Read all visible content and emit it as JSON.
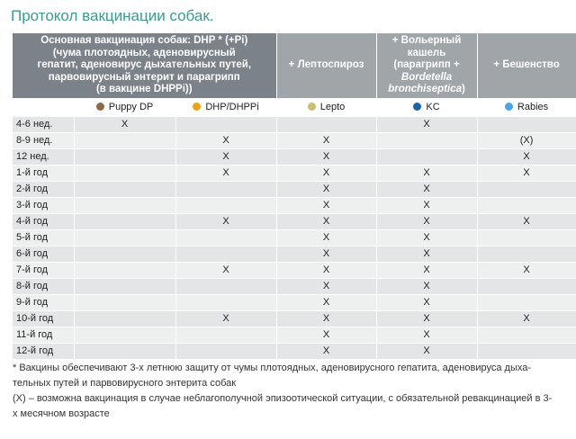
{
  "title": "Протокол вакцинации собак.",
  "header": {
    "main_lines": [
      "Основная вакцинация собак: DHP * (+Pi)",
      "(чума плотоядных, аденовирусный",
      "гепатит, аденовирус дыхательных путей,",
      "парвовирусный энтерит и парагрипп",
      "(в вакцине DHPPi))"
    ],
    "lepto": "+ Лептоспироз",
    "kc_lines": [
      "+ Вольерный",
      "кашель",
      "(парагрипп +"
    ],
    "kc_italic": [
      "Bordetella",
      "bronchiseptica"
    ],
    "kc_close": ")",
    "rabies": "+ Бешенство"
  },
  "legend": [
    {
      "label": "Puppy DP",
      "color": "#8b6a45"
    },
    {
      "label": "DHP/DHPPi",
      "color": "#e8a21c"
    },
    {
      "label": "Lepto",
      "color": "#c9bd72"
    },
    {
      "label": "KC",
      "color": "#1a63a8"
    },
    {
      "label": "Rabies",
      "color": "#4aa8dc"
    }
  ],
  "rows": [
    {
      "age": "4-6 нед.",
      "cells": [
        "X",
        "",
        "",
        "X",
        ""
      ]
    },
    {
      "age": "8-9 нед.",
      "cells": [
        "",
        "X",
        "X",
        "",
        "(X)"
      ]
    },
    {
      "age": "12 нед.",
      "cells": [
        "",
        "X",
        "X",
        "",
        "X"
      ]
    },
    {
      "age": "1-й год",
      "cells": [
        "",
        "X",
        "X",
        "X",
        "X"
      ]
    },
    {
      "age": "2-й год",
      "cells": [
        "",
        "",
        "X",
        "X",
        ""
      ]
    },
    {
      "age": "3-й год",
      "cells": [
        "",
        "",
        "X",
        "X",
        ""
      ]
    },
    {
      "age": "4-й год",
      "cells": [
        "",
        "X",
        "X",
        "X",
        "X"
      ]
    },
    {
      "age": "5-й год",
      "cells": [
        "",
        "",
        "X",
        "X",
        ""
      ]
    },
    {
      "age": "6-й год",
      "cells": [
        "",
        "",
        "X",
        "X",
        ""
      ]
    },
    {
      "age": "7-й год",
      "cells": [
        "",
        "X",
        "X",
        "X",
        "X"
      ]
    },
    {
      "age": "8-й год",
      "cells": [
        "",
        "",
        "X",
        "X",
        ""
      ]
    },
    {
      "age": "9-й год",
      "cells": [
        "",
        "",
        "X",
        "X",
        ""
      ]
    },
    {
      "age": "10-й год",
      "cells": [
        "",
        "X",
        "X",
        "X",
        "X"
      ]
    },
    {
      "age": "11-й год",
      "cells": [
        "",
        "",
        "X",
        "X",
        ""
      ]
    },
    {
      "age": "12-й год",
      "cells": [
        "",
        "",
        "X",
        "X",
        ""
      ]
    }
  ],
  "notes": [
    "* Вакцины обеспечивают 3-х летнюю защиту от чумы плотоядных, аденовирусного гепатита, аденовируса дыха-тельных путей и парвовирусного энтерита собак",
    "(X) – возможна вакцинация в случае неблагополучной эпизоотической ситуации, с обязательной ревакцинацией в 3-х месячном возрасте"
  ]
}
